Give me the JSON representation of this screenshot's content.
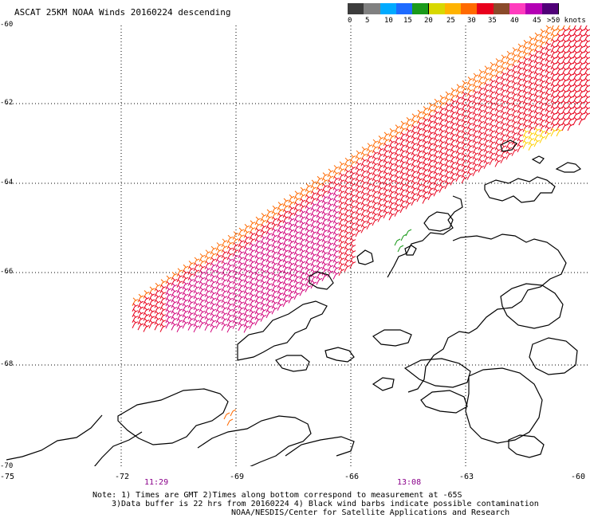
{
  "title": "ASCAT 25KM NOAA Winds 20160224 descending",
  "legend": {
    "swatches": [
      {
        "color": "#3c3c3c"
      },
      {
        "color": "#808080"
      },
      {
        "color": "#00aaff"
      },
      {
        "color": "#1e6bff"
      },
      {
        "color": "#1a9a1a"
      },
      {
        "color": "#d8d800"
      },
      {
        "color": "#ffb300"
      },
      {
        "color": "#ff6a00"
      },
      {
        "color": "#e8001c"
      },
      {
        "color": "#8a4a2a"
      },
      {
        "color": "#ff3cbe"
      },
      {
        "color": "#b400b4"
      },
      {
        "color": "#500078"
      }
    ],
    "labels": [
      "0",
      "5",
      "10",
      "15",
      "20",
      "25",
      "30",
      "35",
      "40",
      "45",
      ">50 knots"
    ]
  },
  "axes": {
    "lat_labels": [
      "-60",
      "-62",
      "-64",
      "-66",
      "-68",
      "-70"
    ],
    "lon_labels": [
      "-75",
      "-72",
      "-69",
      "-66",
      "-63",
      "-60"
    ]
  },
  "times": [
    "11:29",
    "13:08"
  ],
  "notes": {
    "line1": "Note: 1) Times are GMT 2)Times along bottom correspond to measurement at -65S",
    "line2": "3)Data buffer is 22 hrs from 20160224 4) Black wind barbs indicate possible contamination",
    "line3": "NOAA/NESDIS/Center for Satellite Applications and Research"
  },
  "colors": {
    "barb_red": "#e8001c",
    "barb_magenta": "#d2007a",
    "barb_orange": "#ff6a00",
    "barb_yellow": "#ffd000",
    "barb_green": "#1a9a1a",
    "barb_blue": "#1e3cff",
    "coast": "#000000",
    "grid": "#000000"
  }
}
